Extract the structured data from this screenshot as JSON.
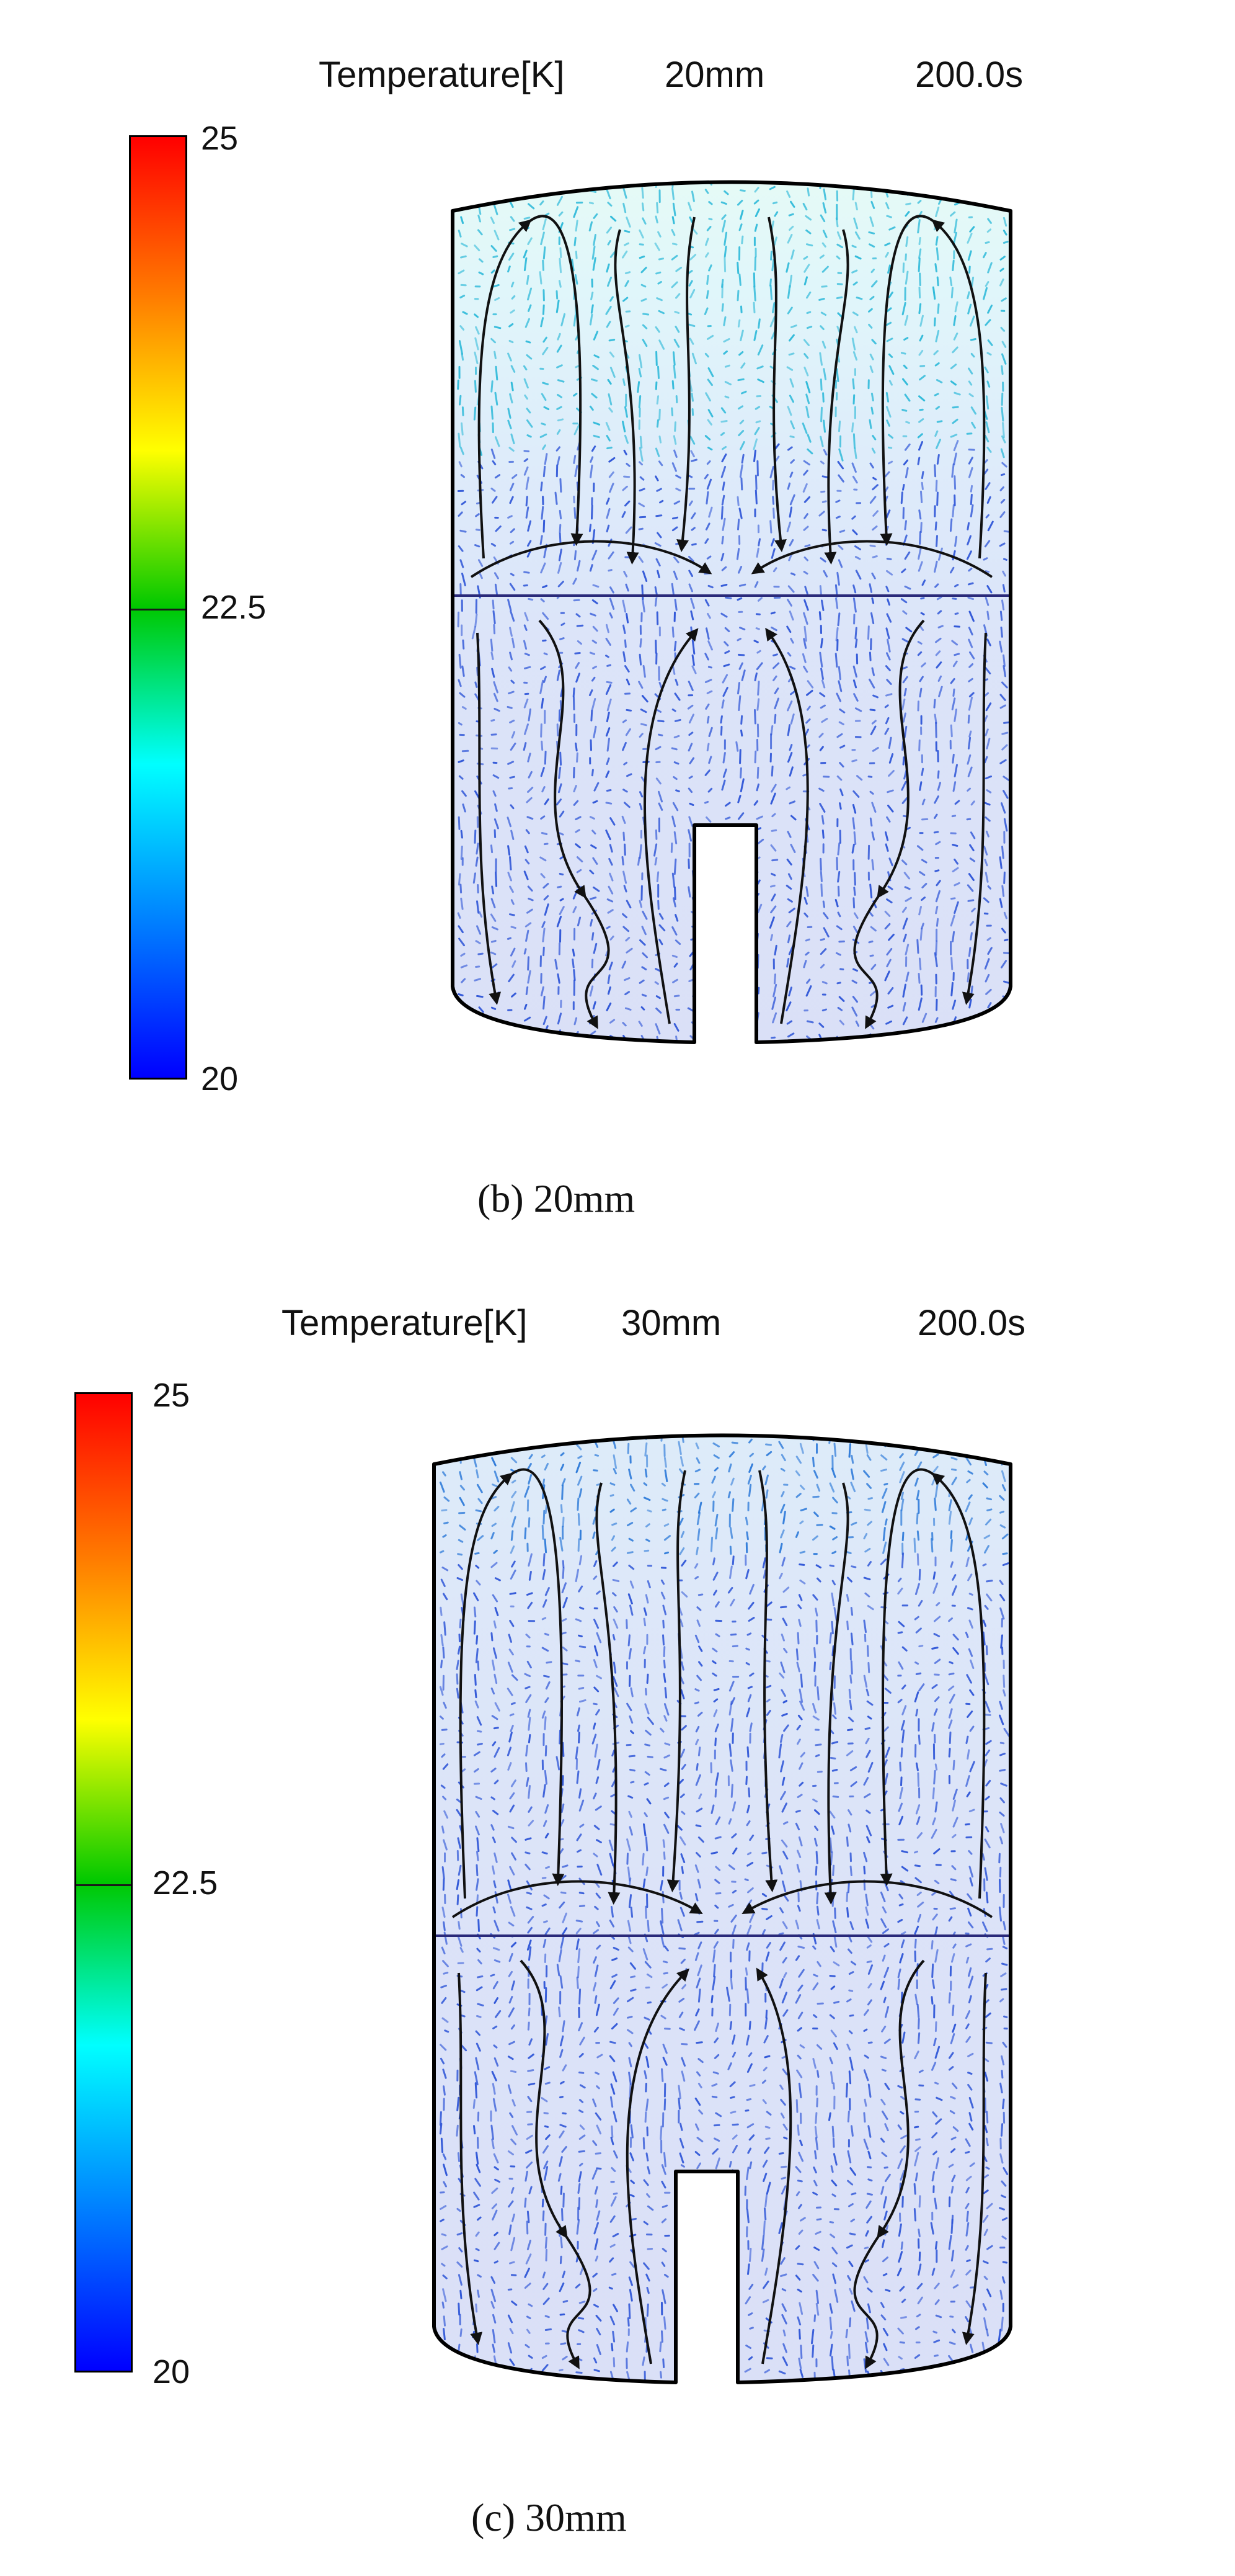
{
  "colors": {
    "colorbar_stops": [
      "#ff0000",
      "#ff7a00",
      "#ffff00",
      "#00c800",
      "#00ffff",
      "#0080ff",
      "#0000ff"
    ],
    "flow_color": "#2a52d6",
    "stream_color": "#111111"
  },
  "panels": [
    {
      "id": "b",
      "header": {
        "variable": "Temperature[K]",
        "size": "20mm",
        "time": "200.0s"
      },
      "colorbar": {
        "max_label": "25",
        "mid_label": "22.5",
        "min_label": "20"
      },
      "caption": "(b) 20mm"
    },
    {
      "id": "c",
      "header": {
        "variable": "Temperature[K]",
        "size": "30mm",
        "time": "200.0s"
      },
      "colorbar": {
        "max_label": "25",
        "mid_label": "22.5",
        "min_label": "20"
      },
      "caption": "(c) 30mm"
    }
  ]
}
